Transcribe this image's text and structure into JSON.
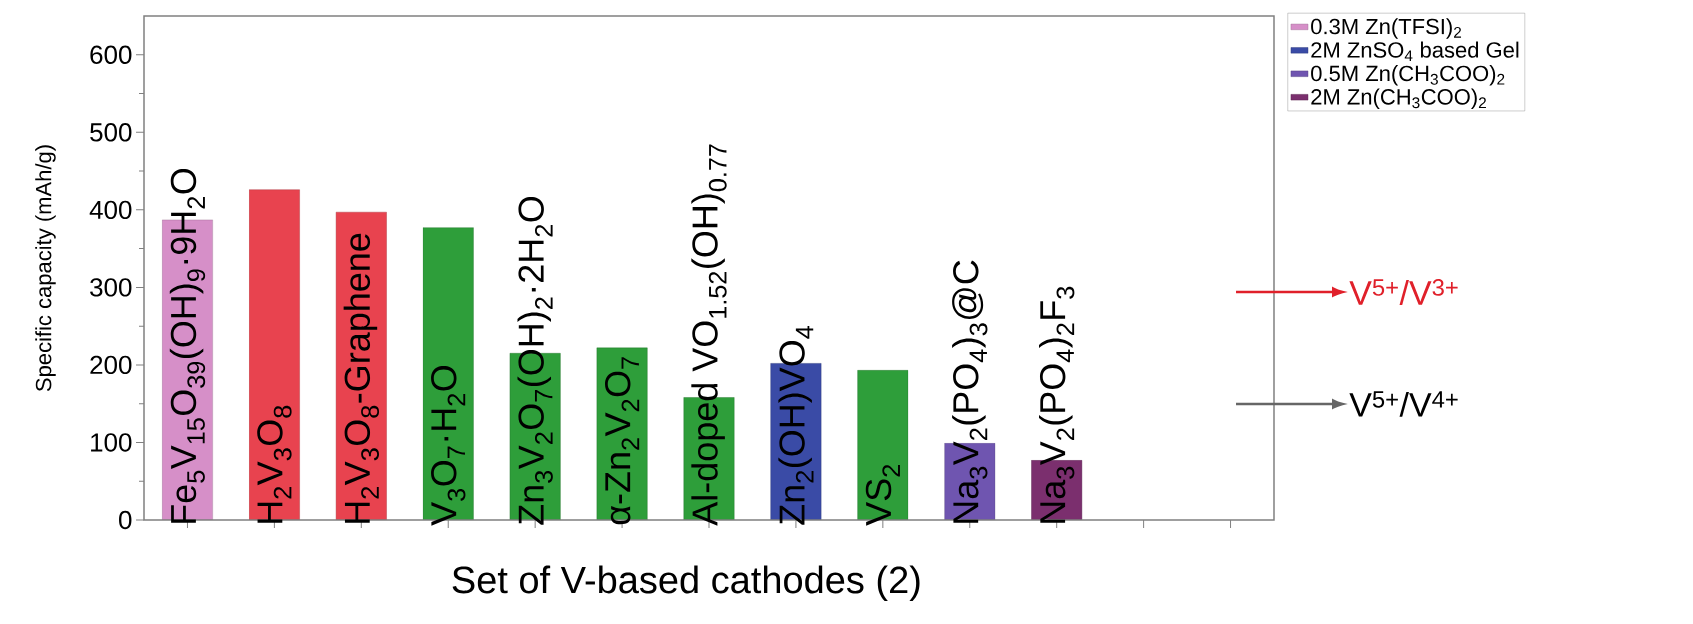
{
  "chart_data": {
    "type": "bar",
    "ylabel": "Specific capacity (mAh/g)",
    "xlabel": "Set of V-based cathodes (2)",
    "categories": [
      "Fe$_{5}$V$_{15}$O$_{39}$(OH)$_{9}$·9H$_{2}$O",
      "H$_{2}$V$_{3}$O$_{8}$",
      "H$_{2}$V$_{3}$O$_{8}$-Graphene",
      "V$_{3}$O$_{7}$·H$_{2}$O",
      "Zn$_{3}$V$_{2}$O$_{7}$(OH)$_{2}$·2H$_{2}$O",
      "α-Zn$_{2}$V$_{2}$O$_{7}$",
      "Al-doped VO$_{1.52}$(OH)$_{0.77}$",
      "Zn$_{2}$(OH)VO$_{4}$",
      "VS$_{2}$",
      "Na$_{3}$V$_{2}$(PO$_{4}$)$_{3}$@C",
      "Na$_{3}$V$_{2}$(PO$_{4}$)$_{2}$F$_{3}$",
      null,
      null
    ],
    "series": [
      {
        "name": "0.3M Zn(TFSI)$_{2}$",
        "color": "#d68fc8",
        "values": [
          387,
          null,
          null,
          null,
          null,
          null,
          null,
          null,
          null,
          null,
          null,
          null,
          null
        ]
      },
      {
        "color": "#e8434f",
        "values": [
          null,
          426,
          397,
          null,
          null,
          null,
          null,
          null,
          null,
          null,
          null,
          null,
          null
        ]
      },
      {
        "color": "#2e9e3a",
        "values": [
          null,
          null,
          null,
          377,
          215,
          222,
          158,
          null,
          193,
          null,
          null,
          null,
          null
        ]
      },
      {
        "name": "2M ZnSO$_{4}$ based Gel",
        "color": "#3a4ba6",
        "values": [
          null,
          null,
          null,
          null,
          null,
          null,
          null,
          202,
          null,
          null,
          null,
          null,
          null
        ]
      },
      {
        "name": "0.5M Zn(CH$_{3}$COO)$_{2}$",
        "color": "#6f55b0",
        "values": [
          null,
          null,
          null,
          null,
          null,
          null,
          null,
          null,
          null,
          99,
          null,
          null,
          null
        ]
      },
      {
        "name": "2M Zn(CH$_{3}$COO)$_{2}$",
        "color": "#7b2f6e",
        "values": [
          null,
          null,
          null,
          null,
          null,
          null,
          null,
          null,
          null,
          null,
          77,
          null,
          null
        ]
      }
    ],
    "ylim": [
      0,
      650
    ],
    "yticks": [
      0,
      100,
      200,
      300,
      400,
      500,
      600
    ],
    "legend": "top right",
    "stacked": true,
    "annotations": [
      "V$^{5+}$/V$^{3+}$",
      "V$^{5+}$/V$^{4+}$"
    ]
  }
}
